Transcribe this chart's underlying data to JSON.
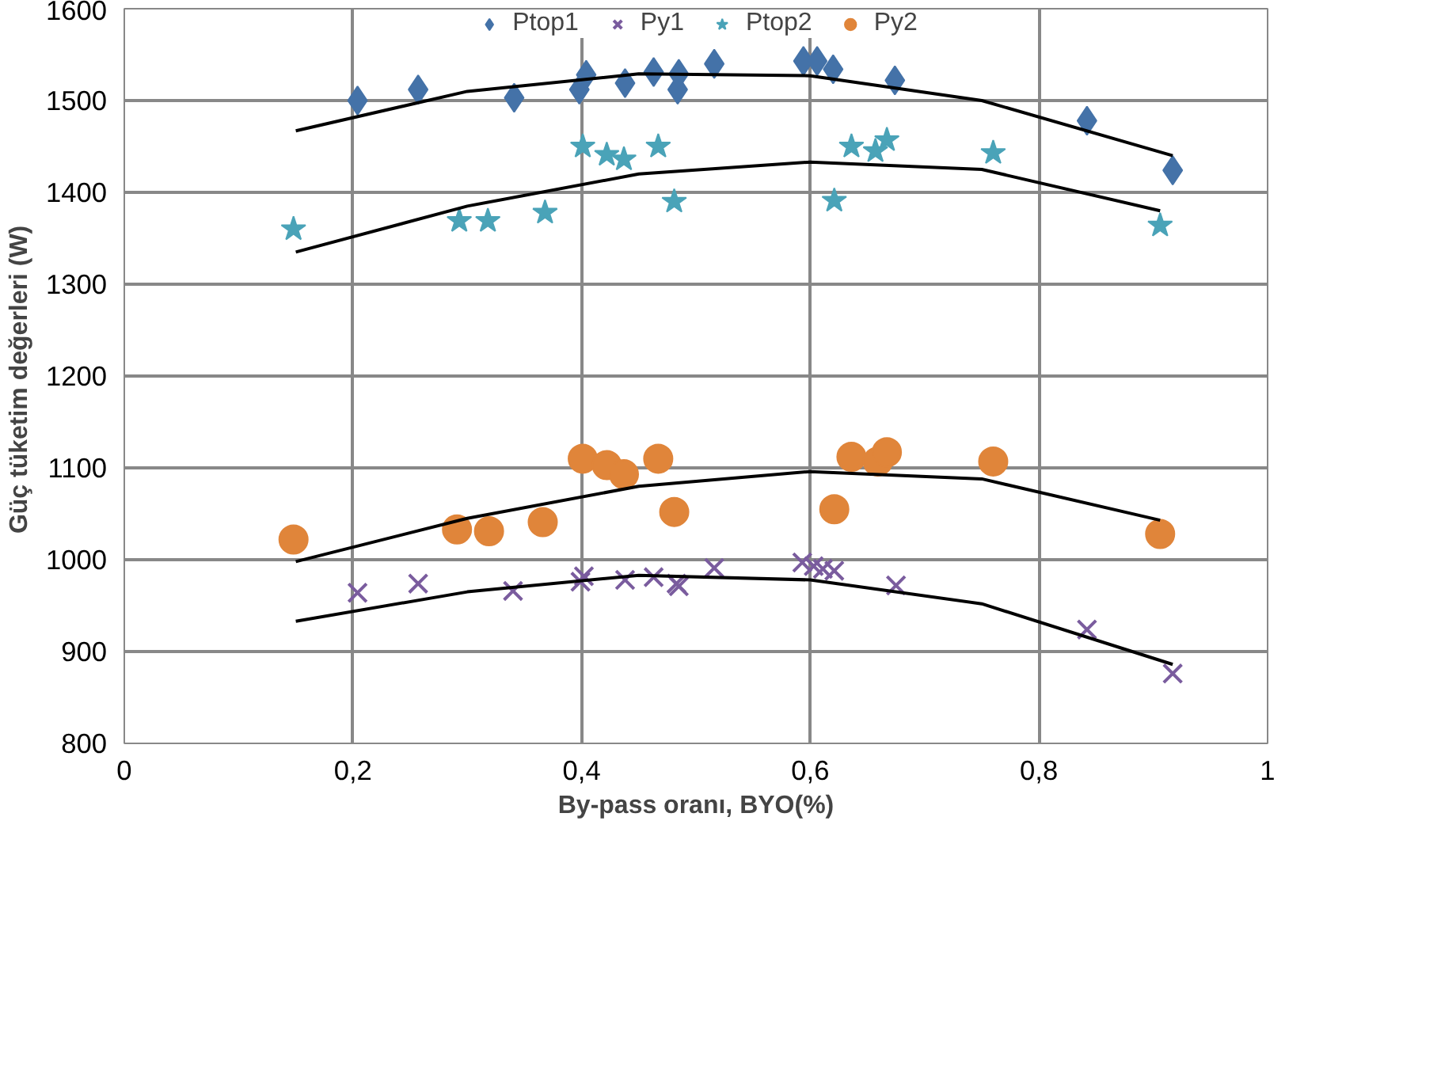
{
  "chart_data": {
    "type": "scatter",
    "xlabel": "By-pass oranı, BYO(%)",
    "ylabel": "Güç tüketim değerleri  (W)",
    "xlim": [
      0,
      1
    ],
    "ylim": [
      800,
      1600
    ],
    "xticks": [
      0,
      {
        "value": 0.2,
        "label": "0,2"
      },
      {
        "value": 0.4,
        "label": "0,4"
      },
      {
        "value": 0.6,
        "label": "0,6"
      },
      {
        "value": 0.8,
        "label": "0,8"
      },
      1
    ],
    "yticks": [
      800,
      900,
      1000,
      1100,
      1200,
      1300,
      1400,
      1500,
      1600
    ],
    "grid": true,
    "legend": "top",
    "series": [
      {
        "name": "Ptop1",
        "color": "#4472a8",
        "marker": "diamond",
        "x": [
          0.204,
          0.257,
          0.341,
          0.398,
          0.404,
          0.438,
          0.463,
          0.484,
          0.485,
          0.516,
          0.594,
          0.606,
          0.62,
          0.674,
          0.842,
          0.917
        ],
        "values": [
          1500,
          1512,
          1503,
          1512,
          1528,
          1519,
          1531,
          1512,
          1529,
          1540,
          1543,
          1543,
          1534,
          1522,
          1478,
          1424
        ]
      },
      {
        "name": "Py1",
        "color": "#7a5c9e",
        "marker": "cross",
        "x": [
          0.204,
          0.257,
          0.34,
          0.399,
          0.402,
          0.438,
          0.463,
          0.483,
          0.485,
          0.516,
          0.593,
          0.603,
          0.611,
          0.621,
          0.675,
          0.842,
          0.917
        ],
        "values": [
          964,
          974,
          966,
          976,
          982,
          978,
          981,
          974,
          971,
          991,
          997,
          993,
          990,
          988,
          972,
          924,
          876
        ]
      },
      {
        "name": "Ptop2",
        "color": "#4aa3b8",
        "marker": "star",
        "x": [
          0.148,
          0.293,
          0.318,
          0.368,
          0.401,
          0.422,
          0.437,
          0.467,
          0.481,
          0.621,
          0.636,
          0.657,
          0.667,
          0.76,
          0.906
        ],
        "values": [
          1360,
          1369,
          1369,
          1378,
          1450,
          1441,
          1436,
          1450,
          1390,
          1391,
          1450,
          1445,
          1457,
          1443,
          1364
        ]
      },
      {
        "name": "Py2",
        "color": "#e0853a",
        "marker": "circle",
        "x": [
          0.148,
          0.291,
          0.319,
          0.366,
          0.401,
          0.422,
          0.437,
          0.467,
          0.481,
          0.621,
          0.636,
          0.659,
          0.667,
          0.76,
          0.906
        ],
        "values": [
          1022,
          1033,
          1031,
          1041,
          1110,
          1103,
          1093,
          1110,
          1052,
          1055,
          1112,
          1107,
          1117,
          1107,
          1028
        ]
      },
      {
        "type": "line",
        "color": "#000000",
        "x": [
          0.15,
          0.3,
          0.45,
          0.6,
          0.75,
          0.917
        ],
        "values": [
          1467,
          1510,
          1529,
          1527,
          1500,
          1440
        ]
      },
      {
        "type": "line",
        "color": "#000000",
        "x": [
          0.15,
          0.3,
          0.45,
          0.6,
          0.75,
          0.917
        ],
        "values": [
          933,
          965,
          983,
          978,
          952,
          886
        ]
      },
      {
        "type": "line",
        "color": "#000000",
        "x": [
          0.15,
          0.3,
          0.45,
          0.6,
          0.75,
          0.906
        ],
        "values": [
          1335,
          1385,
          1420,
          1433,
          1425,
          1380
        ]
      },
      {
        "type": "line",
        "color": "#000000",
        "x": [
          0.15,
          0.3,
          0.45,
          0.6,
          0.75,
          0.906
        ],
        "values": [
          998,
          1045,
          1080,
          1096,
          1088,
          1043
        ]
      }
    ]
  }
}
